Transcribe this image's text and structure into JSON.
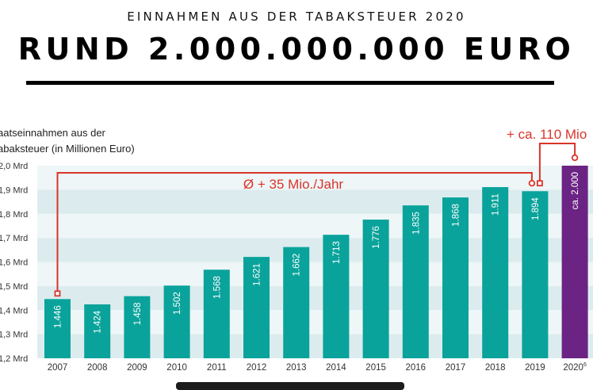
{
  "header": {
    "kicker": "EINNAHMEN AUS DER TABAKSTEUER 2020",
    "headline": "RUND 2.000.000.000 EURO"
  },
  "chart_data": {
    "type": "bar",
    "title": "Einnahmen aus der Tabaksteuer 2020",
    "ylabel_lines": [
      "aatseinnahmen aus der",
      "abaksteuer (in Millionen Euro)"
    ],
    "xlabel": "",
    "categories": [
      "2007",
      "2008",
      "2009",
      "2010",
      "2011",
      "2012",
      "2013",
      "2014",
      "2015",
      "2016",
      "2017",
      "2018",
      "2019",
      "2020"
    ],
    "category_superscripts": {
      "2020": "6"
    },
    "values": [
      1446,
      1424,
      1458,
      1502,
      1568,
      1621,
      1662,
      1713,
      1776,
      1835,
      1868,
      1911,
      1894,
      2000
    ],
    "value_labels": [
      "1.446",
      "1.424",
      "1.458",
      "1.502",
      "1.568",
      "1.621",
      "1.662",
      "1.713",
      "1.776",
      "1.835",
      "1.868",
      "1.911",
      "1.894",
      "ca. 2.000"
    ],
    "ylim": [
      1200,
      2000
    ],
    "yticks": [
      1200,
      1300,
      1400,
      1500,
      1600,
      1700,
      1800,
      1900,
      2000
    ],
    "ytick_labels": [
      "1,2 Mrd",
      "1,3 Mrd",
      "1,4 Mrd",
      "1,5 Mrd",
      "1,6 Mrd",
      "1,7 Mrd",
      "1,8 Mrd",
      "1,9 Mrd",
      "2,0 Mrd"
    ],
    "grid": "alternating horizontal bands",
    "colors": {
      "bar": "#0aa39b",
      "bar_highlight": "#6b2483",
      "annotation": "#d9352a",
      "band_light": "#eef6f7",
      "band_dark": "#dcecee"
    },
    "highlight_category": "2020",
    "annotations": [
      {
        "text": "Ø + 35 Mio./Jahr",
        "from": "2007",
        "to": "2019"
      },
      {
        "text": "+ ca. 110 Mio",
        "from": "2019",
        "to": "2020"
      }
    ]
  }
}
